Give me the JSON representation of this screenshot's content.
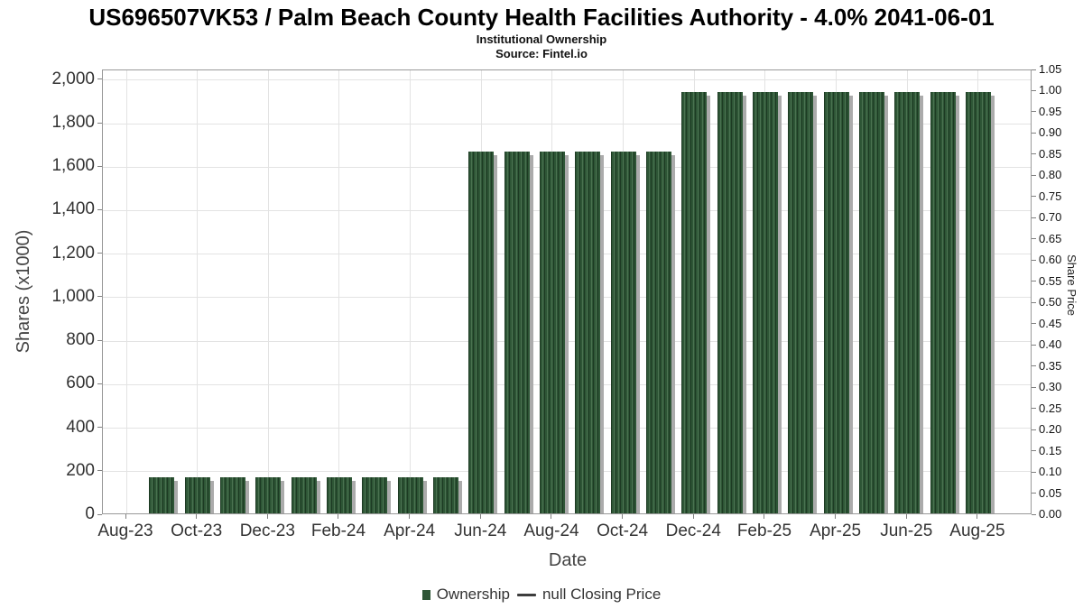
{
  "chart_data": {
    "type": "bar",
    "title": "US696507VK53 / Palm Beach County Health Facilities Authority - 4.0% 2041-06-01",
    "subtitle": "Institutional Ownership",
    "source": "Source: Fintel.io",
    "xlabel": "Date",
    "ylabel_left": "Shares (x1000)",
    "ylabel_right": "Share Price",
    "grid": true,
    "legend_position": "bottom",
    "legend": {
      "ownership": "Ownership",
      "closing_price": "null Closing Price"
    },
    "x_axis": {
      "tick_labels": [
        "Aug-23",
        "Oct-23",
        "Dec-23",
        "Feb-24",
        "Apr-24",
        "Jun-24",
        "Aug-24",
        "Oct-24",
        "Dec-24",
        "Feb-25",
        "Apr-25",
        "Jun-25",
        "Aug-25"
      ],
      "tick_month_index": [
        0,
        2,
        4,
        6,
        8,
        10,
        12,
        14,
        16,
        18,
        20,
        22,
        24
      ]
    },
    "left_axis": {
      "range": [
        0,
        2045
      ],
      "tick_values": [
        0,
        200,
        400,
        600,
        800,
        1000,
        1200,
        1400,
        1600,
        1800,
        2000
      ],
      "tick_labels": [
        "0",
        "200",
        "400",
        "600",
        "800",
        "1,000",
        "1,200",
        "1,400",
        "1,600",
        "1,800",
        "2,000"
      ]
    },
    "right_axis": {
      "range": [
        0,
        1.05
      ],
      "tick_values": [
        0,
        0.05,
        0.1,
        0.15,
        0.2,
        0.25,
        0.3,
        0.35,
        0.4,
        0.45,
        0.5,
        0.55,
        0.6,
        0.65,
        0.7,
        0.75,
        0.8,
        0.85,
        0.9,
        0.95,
        1.0,
        1.05
      ],
      "tick_labels": [
        "0.00",
        "0.05",
        "0.10",
        "0.15",
        "0.20",
        "0.25",
        "0.30",
        "0.35",
        "0.40",
        "0.45",
        "0.50",
        "0.55",
        "0.60",
        "0.65",
        "0.70",
        "0.75",
        "0.80",
        "0.85",
        "0.90",
        "0.95",
        "1.00",
        "1.05"
      ]
    },
    "series": [
      {
        "name": "Ownership",
        "type": "bar",
        "axis": "left",
        "unit": "shares (x1000)",
        "x": [
          "Sep-23",
          "Oct-23",
          "Nov-23",
          "Dec-23",
          "Jan-24",
          "Feb-24",
          "Mar-24",
          "Apr-24",
          "May-24",
          "Jun-24",
          "Jul-24",
          "Aug-24",
          "Sep-24",
          "Oct-24",
          "Nov-24",
          "Dec-24",
          "Jan-25",
          "Feb-25",
          "Mar-25",
          "Apr-25",
          "May-25",
          "Jun-25",
          "Jul-25",
          "Aug-25"
        ],
        "month_index": [
          1,
          2,
          3,
          4,
          5,
          6,
          7,
          8,
          9,
          10,
          11,
          12,
          13,
          14,
          15,
          16,
          17,
          18,
          19,
          20,
          21,
          22,
          23,
          24
        ],
        "values": [
          175,
          175,
          175,
          175,
          175,
          175,
          175,
          175,
          175,
          1670,
          1670,
          1670,
          1670,
          1670,
          1670,
          1945,
          1945,
          1945,
          1945,
          1945,
          1945,
          1945,
          1945,
          1945
        ]
      },
      {
        "name": "null Closing Price",
        "type": "line",
        "axis": "right",
        "x": [],
        "values": []
      }
    ]
  },
  "colors": {
    "bar": "#2e5636",
    "bar_stripe_light": "#4b7251",
    "bar_stripe_dark": "#1d3a23",
    "bar_shadow": "#ababab",
    "grid": "#e3e3e3",
    "frame": "#999999",
    "tick_mark": "#808080",
    "tick_text": "#333333",
    "axis_title_text": "#444444",
    "title_text": "#000000",
    "legend_dash": "#3d3d3d",
    "background": "#ffffff"
  }
}
